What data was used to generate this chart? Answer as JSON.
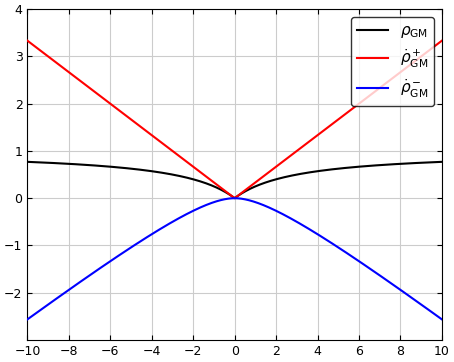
{
  "xlim": [
    -10,
    10
  ],
  "ylim": [
    -3,
    4
  ],
  "xticks": [
    -10,
    -8,
    -6,
    -4,
    -2,
    0,
    2,
    4,
    6,
    8,
    10
  ],
  "yticks": [
    -2,
    -1,
    0,
    1,
    2,
    3,
    4
  ],
  "grid_color": "#cccccc",
  "background_color": "#ffffff",
  "line_black_color": "#000000",
  "line_red_color": "#ff0000",
  "line_blue_color": "#0000ff",
  "linewidth": 1.5,
  "scale_a": 3,
  "n_points": 2000,
  "x_start": -10,
  "x_end": 10,
  "legend_labels": [
    "$\\rho_{\\mathrm{GM}}$",
    "$\\dot{\\rho}^+_{\\mathrm{GM}}$",
    "$\\dot{\\rho}^-_{\\mathrm{GM}}$"
  ],
  "legend_loc": "upper right",
  "legend_fontsize": 11,
  "figsize": [
    4.54,
    3.62
  ],
  "dpi": 100
}
